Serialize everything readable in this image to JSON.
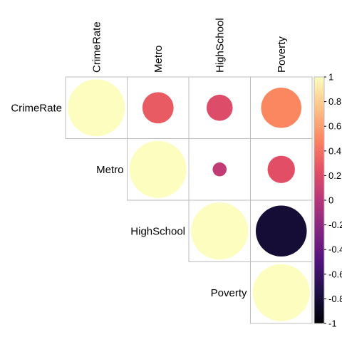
{
  "chart_data": {
    "type": "heatmap",
    "title": "",
    "variables": [
      "CrimeRate",
      "Metro",
      "HighSchool",
      "Poverty"
    ],
    "matrix_shape": "upper",
    "marker": "circle",
    "cells": [
      {
        "row": "CrimeRate",
        "col": "CrimeRate",
        "value": 1.0
      },
      {
        "row": "CrimeRate",
        "col": "Metro",
        "value": 0.3
      },
      {
        "row": "CrimeRate",
        "col": "HighSchool",
        "value": 0.21
      },
      {
        "row": "CrimeRate",
        "col": "Poverty",
        "value": 0.5
      },
      {
        "row": "Metro",
        "col": "Metro",
        "value": 1.0
      },
      {
        "row": "Metro",
        "col": "HighSchool",
        "value": 0.06
      },
      {
        "row": "Metro",
        "col": "Poverty",
        "value": 0.23
      },
      {
        "row": "HighSchool",
        "col": "HighSchool",
        "value": 1.0
      },
      {
        "row": "HighSchool",
        "col": "Poverty",
        "value": -0.8
      },
      {
        "row": "Poverty",
        "col": "Poverty",
        "value": 1.0
      }
    ],
    "colorbar": {
      "range": [
        -1,
        1
      ],
      "ticks": [
        "1",
        "0.8",
        "0.6",
        "0.4",
        "0.2",
        "0",
        "-0.2",
        "-0.4",
        "-0.6",
        "-0.8",
        "-1"
      ],
      "palette": [
        "#000004",
        "#1C1044",
        "#4F127B",
        "#812581",
        "#B5367A",
        "#E55064",
        "#FB8761",
        "#FEC287",
        "#FCFDBF"
      ]
    },
    "grid": true,
    "legend_position": "right"
  }
}
